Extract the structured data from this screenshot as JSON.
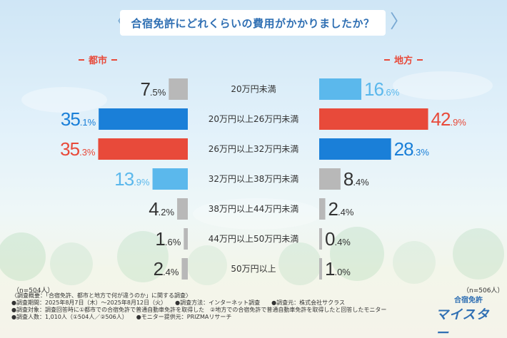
{
  "title": "合宿免許にどれくらいの費用がかかりましたか？",
  "chart_data": {
    "type": "bar",
    "categories": [
      "20万円未満",
      "20万円以上26万円未満",
      "26万円以上32万円未満",
      "32万円以上38万円未満",
      "38万円以上44万円未満",
      "44万円以上50万円未満",
      "50万円以上"
    ],
    "series": [
      {
        "name": "都市",
        "values": [
          7.5,
          35.1,
          35.3,
          13.9,
          4.2,
          1.6,
          2.4
        ],
        "n": "（n=504人）"
      },
      {
        "name": "地方",
        "values": [
          16.6,
          42.9,
          28.3,
          8.4,
          2.4,
          0.4,
          1.0
        ],
        "n": "（n=506人）"
      }
    ],
    "unit": "%",
    "highlight": {
      "first": "#e84a3a",
      "second": "#1a7fd8",
      "third": "#5bb8ec",
      "other": "#b8b8b8",
      "text_other": "#333333"
    }
  },
  "footer": {
    "lines": [
      "〈調査概要：「合宿免許、都市と地方で何が違うのか」に関する調査〉",
      "●調査期間：2025年8月7日（木）〜2025年8月12日（火）　　●調査方法：インターネット調査　　●調査元：株式会社サクラス",
      "●調査対象：調査回答時に①都市での合宿免許で普通自動車免許を取得した　②地方での合宿免許で普通自動車免許を取得したと回答したモニター",
      "●調査人数：1,010人（①504人／②506人）　　●モニター提供元：PRIZMAリサーチ"
    ]
  },
  "logo": {
    "top": "合宿免許",
    "main": "マイスター"
  }
}
